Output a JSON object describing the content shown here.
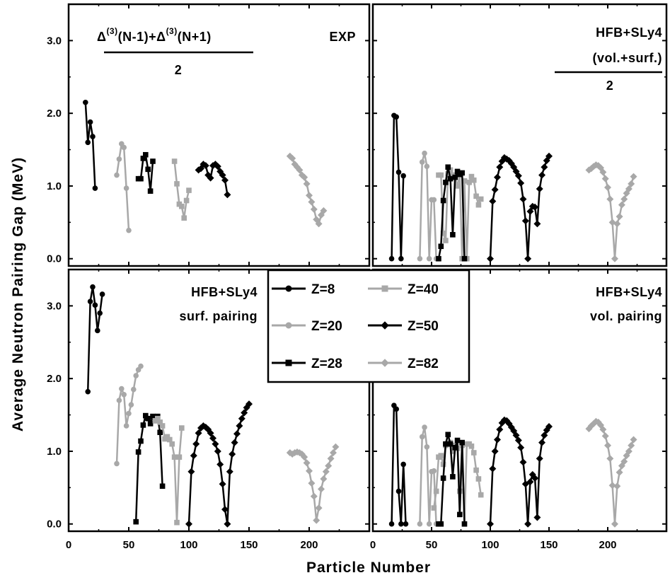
{
  "figure": {
    "y_axis_title": "Average Neutron Pairing Gap (MeV)",
    "x_axis_title": "Particle Number"
  },
  "series_styles": {
    "Z=8": {
      "color": "#000000",
      "marker": "circle"
    },
    "Z=20": {
      "color": "#a8a8a8",
      "marker": "circle"
    },
    "Z=28": {
      "color": "#000000",
      "marker": "square"
    },
    "Z=40": {
      "color": "#a8a8a8",
      "marker": "square"
    },
    "Z=50": {
      "color": "#000000",
      "marker": "diamond"
    },
    "Z=82": {
      "color": "#a8a8a8",
      "marker": "diamond"
    }
  },
  "legend": {
    "entries": [
      {
        "name": "Z=8",
        "column": 0,
        "row": 0
      },
      {
        "name": "Z=20",
        "column": 0,
        "row": 1
      },
      {
        "name": "Z=28",
        "column": 0,
        "row": 2
      },
      {
        "name": "Z=40",
        "column": 1,
        "row": 0
      },
      {
        "name": "Z=50",
        "column": 1,
        "row": 1
      },
      {
        "name": "Z=82",
        "column": 1,
        "row": 2
      }
    ]
  },
  "panel_labels": {
    "top_left": {
      "formula_left": "Δ",
      "formula_sup1": "(3)",
      "formula_mid": "(N-1)+Δ",
      "formula_sup2": "(3)",
      "formula_right": "(N+1)",
      "denominator": "2",
      "label": "EXP"
    },
    "top_right": {
      "line1": "HFB+SLy4",
      "line2": "(vol.+surf.)",
      "denominator": "2"
    },
    "bottom_left": {
      "line1": "HFB+SLy4",
      "line2": "surf. pairing"
    },
    "bottom_right": {
      "line1": "HFB+SLy4",
      "line2": "vol. pairing"
    }
  },
  "chart_data": [
    {
      "type": "line",
      "panel": "top-left",
      "xlim": [
        0,
        250
      ],
      "ylim": [
        -0.1,
        3.5
      ],
      "xticks": [
        "0",
        "50",
        "100",
        "150",
        "200"
      ],
      "yticks": [
        "0.0",
        "1.0",
        "2.0",
        "3.0"
      ],
      "show_x_tick_labels": false,
      "show_y_tick_labels": true,
      "series": [
        {
          "name": "Z=8",
          "x": [
            14,
            16,
            18,
            20,
            22
          ],
          "y": [
            2.15,
            1.6,
            1.88,
            1.68,
            0.97
          ]
        },
        {
          "name": "Z=20",
          "x": [
            40,
            42,
            44,
            46,
            48,
            50
          ],
          "y": [
            1.15,
            1.37,
            1.58,
            1.53,
            0.97,
            0.39
          ]
        },
        {
          "name": "Z=28",
          "x": [
            58,
            60,
            62,
            64,
            66,
            68,
            70
          ],
          "y": [
            1.1,
            1.1,
            1.38,
            1.43,
            1.23,
            0.93,
            1.34
          ]
        },
        {
          "name": "Z=40",
          "x": [
            88,
            90,
            92,
            94,
            96,
            98,
            100
          ],
          "y": [
            1.34,
            1.03,
            0.75,
            0.72,
            0.56,
            0.8,
            0.94
          ]
        },
        {
          "name": "Z=50",
          "x": [
            108,
            110,
            112,
            114,
            116,
            118,
            120,
            122,
            124,
            126,
            128,
            130,
            132
          ],
          "y": [
            1.22,
            1.24,
            1.3,
            1.28,
            1.15,
            1.11,
            1.28,
            1.3,
            1.27,
            1.2,
            1.15,
            1.08,
            0.88
          ]
        },
        {
          "name": "Z=82",
          "x": [
            184,
            186,
            188,
            190,
            192,
            194,
            196,
            198,
            200,
            202,
            204,
            206,
            208,
            210,
            212
          ],
          "y": [
            1.41,
            1.38,
            1.3,
            1.26,
            1.22,
            1.15,
            1.12,
            1.03,
            0.87,
            0.78,
            0.68,
            0.54,
            0.48,
            0.6,
            0.66
          ]
        }
      ]
    },
    {
      "type": "line",
      "panel": "top-right",
      "xlim": [
        0,
        250
      ],
      "ylim": [
        -0.1,
        3.5
      ],
      "xticks": [
        "0",
        "50",
        "100",
        "150",
        "200"
      ],
      "yticks": [
        "0.0",
        "1.0",
        "2.0",
        "3.0"
      ],
      "show_x_tick_labels": false,
      "show_y_tick_labels": false,
      "series": [
        {
          "name": "Z=8",
          "x": [
            16,
            18,
            20,
            22,
            24,
            26
          ],
          "y": [
            0.0,
            1.97,
            1.95,
            1.19,
            0.0,
            1.14
          ]
        },
        {
          "name": "Z=20",
          "x": [
            40,
            42,
            44,
            46,
            48,
            50,
            52,
            54
          ],
          "y": [
            0.0,
            1.33,
            1.45,
            1.27,
            0.0,
            0.81,
            0.81,
            0.0
          ]
        },
        {
          "name": "Z=40",
          "x": [
            56,
            58,
            60,
            62,
            64,
            66,
            68,
            70,
            72,
            74,
            76,
            78,
            80,
            82,
            84,
            86,
            88,
            90,
            92
          ],
          "y": [
            1.15,
            1.15,
            0.35,
            0.25,
            1.17,
            1.22,
            1.15,
            1.13,
            1.0,
            1.15,
            0.0,
            1.07,
            0.0,
            1.05,
            1.13,
            1.08,
            0.86,
            0.74,
            0.82
          ]
        },
        {
          "name": "Z=28",
          "x": [
            56,
            58,
            60,
            62,
            64,
            66,
            68,
            70,
            72,
            74,
            76,
            78
          ],
          "y": [
            0.0,
            0.17,
            0.8,
            1.05,
            1.26,
            1.1,
            0.33,
            1.12,
            1.2,
            1.16,
            1.18,
            0.0
          ]
        },
        {
          "name": "Z=50",
          "x": [
            100,
            102,
            104,
            106,
            108,
            110,
            112,
            114,
            116,
            118,
            120,
            122,
            124,
            126,
            128,
            130,
            132,
            134,
            136,
            138,
            140,
            142,
            144,
            146,
            148,
            150
          ],
          "y": [
            0.0,
            0.79,
            0.95,
            1.12,
            1.26,
            1.34,
            1.39,
            1.37,
            1.35,
            1.31,
            1.26,
            1.2,
            1.14,
            1.04,
            0.82,
            0.52,
            0.0,
            0.65,
            0.72,
            0.71,
            0.48,
            0.96,
            1.15,
            1.26,
            1.35,
            1.41
          ]
        },
        {
          "name": "Z=82",
          "x": [
            184,
            186,
            188,
            190,
            192,
            194,
            196,
            198,
            200,
            202,
            204,
            206,
            208,
            210,
            212,
            214,
            216,
            218,
            220,
            222
          ],
          "y": [
            1.22,
            1.24,
            1.27,
            1.29,
            1.28,
            1.25,
            1.19,
            1.1,
            0.98,
            0.82,
            0.5,
            0.0,
            0.48,
            0.58,
            0.74,
            0.82,
            0.9,
            0.96,
            1.03,
            1.13
          ]
        }
      ]
    },
    {
      "type": "line",
      "panel": "bottom-left",
      "xlim": [
        0,
        250
      ],
      "ylim": [
        -0.1,
        3.5
      ],
      "xticks": [
        "0",
        "50",
        "100",
        "150",
        "200"
      ],
      "yticks": [
        "0.0",
        "1.0",
        "2.0",
        "3.0"
      ],
      "show_x_tick_labels": true,
      "show_y_tick_labels": true,
      "series": [
        {
          "name": "Z=8",
          "x": [
            16,
            18,
            20,
            22,
            24,
            26,
            28
          ],
          "y": [
            1.82,
            3.06,
            3.26,
            3.01,
            2.66,
            2.9,
            3.16
          ]
        },
        {
          "name": "Z=20",
          "x": [
            40,
            42,
            44,
            46,
            48,
            50,
            52,
            54,
            56,
            58,
            60
          ],
          "y": [
            0.83,
            1.7,
            1.86,
            1.78,
            1.35,
            1.52,
            1.64,
            1.85,
            2.04,
            2.12,
            2.17
          ]
        },
        {
          "name": "Z=28",
          "x": [
            56,
            58,
            60,
            62,
            64,
            66,
            68,
            70,
            72,
            74,
            76,
            78
          ],
          "y": [
            0.03,
            0.99,
            1.14,
            1.36,
            1.49,
            1.45,
            1.38,
            1.48,
            1.42,
            1.48,
            1.26,
            0.52
          ]
        },
        {
          "name": "Z=40",
          "x": [
            72,
            74,
            76,
            78,
            80,
            82,
            84,
            86,
            88,
            90,
            92,
            94
          ],
          "y": [
            1.42,
            1.45,
            1.4,
            1.35,
            1.17,
            1.2,
            1.16,
            1.1,
            0.92,
            0.02,
            0.92,
            1.32
          ]
        },
        {
          "name": "Z=50",
          "x": [
            100,
            102,
            104,
            106,
            108,
            110,
            112,
            114,
            116,
            118,
            120,
            122,
            124,
            126,
            128,
            130,
            132,
            134,
            136,
            138,
            140,
            142,
            144,
            146,
            148,
            150
          ],
          "y": [
            0.0,
            0.72,
            0.94,
            1.1,
            1.25,
            1.32,
            1.35,
            1.33,
            1.3,
            1.25,
            1.18,
            1.1,
            1.0,
            0.82,
            0.55,
            0.2,
            0.0,
            0.72,
            0.96,
            1.12,
            1.24,
            1.35,
            1.45,
            1.53,
            1.6,
            1.65
          ]
        },
        {
          "name": "Z=82",
          "x": [
            184,
            186,
            188,
            190,
            192,
            194,
            196,
            198,
            200,
            202,
            204,
            206,
            208,
            210,
            212,
            214,
            216,
            218,
            220,
            222
          ],
          "y": [
            0.98,
            0.96,
            0.98,
            0.99,
            0.98,
            0.96,
            0.92,
            0.84,
            0.73,
            0.56,
            0.38,
            0.05,
            0.22,
            0.48,
            0.62,
            0.72,
            0.8,
            0.9,
            0.98,
            1.06
          ]
        }
      ]
    },
    {
      "type": "line",
      "panel": "bottom-right",
      "xlim": [
        0,
        250
      ],
      "ylim": [
        -0.1,
        3.5
      ],
      "xticks": [
        "0",
        "50",
        "100",
        "150",
        "200"
      ],
      "yticks": [
        "0.0",
        "1.0",
        "2.0",
        "3.0"
      ],
      "show_x_tick_labels": true,
      "show_y_tick_labels": false,
      "series": [
        {
          "name": "Z=8",
          "x": [
            16,
            18,
            20,
            22,
            24,
            26,
            28
          ],
          "y": [
            0.0,
            1.63,
            1.58,
            0.45,
            0.0,
            0.82,
            0.0
          ]
        },
        {
          "name": "Z=20",
          "x": [
            40,
            42,
            44,
            46,
            48,
            50,
            52,
            54
          ],
          "y": [
            0.0,
            1.2,
            1.33,
            1.06,
            0.0,
            0.72,
            0.73,
            0.0
          ]
        },
        {
          "name": "Z=40",
          "x": [
            52,
            54,
            56,
            58,
            60,
            62,
            64,
            66,
            68,
            70,
            72,
            74,
            76,
            78,
            80,
            82,
            84,
            86,
            88,
            90,
            92
          ],
          "y": [
            0.22,
            0.45,
            0.92,
            0.94,
            0.82,
            1.08,
            1.1,
            1.12,
            1.0,
            1.08,
            1.04,
            0.45,
            1.08,
            0.0,
            1.1,
            1.1,
            1.07,
            0.98,
            0.74,
            0.62,
            0.4
          ]
        },
        {
          "name": "Z=28",
          "x": [
            56,
            58,
            60,
            62,
            64,
            66,
            68,
            70,
            72,
            74,
            76,
            78
          ],
          "y": [
            0.0,
            0.0,
            0.63,
            1.1,
            1.23,
            1.1,
            0.65,
            1.05,
            1.15,
            0.13,
            1.12,
            0.0
          ]
        },
        {
          "name": "Z=50",
          "x": [
            100,
            102,
            104,
            106,
            108,
            110,
            112,
            114,
            116,
            118,
            120,
            122,
            124,
            126,
            128,
            130,
            132,
            134,
            136,
            138,
            140,
            142,
            144,
            146,
            148,
            150
          ],
          "y": [
            0.0,
            0.76,
            1.0,
            1.16,
            1.3,
            1.39,
            1.43,
            1.42,
            1.38,
            1.33,
            1.28,
            1.22,
            1.15,
            1.05,
            0.85,
            0.55,
            0.0,
            0.58,
            0.68,
            0.63,
            0.09,
            0.9,
            1.12,
            1.22,
            1.29,
            1.34
          ]
        },
        {
          "name": "Z=82",
          "x": [
            184,
            186,
            188,
            190,
            192,
            194,
            196,
            198,
            200,
            202,
            204,
            206,
            208,
            210,
            212,
            214,
            216,
            218,
            220,
            222
          ],
          "y": [
            1.31,
            1.35,
            1.38,
            1.41,
            1.4,
            1.36,
            1.3,
            1.21,
            1.08,
            0.9,
            0.53,
            0.0,
            0.52,
            0.71,
            0.8,
            0.86,
            0.94,
            1.0,
            1.08,
            1.16
          ]
        }
      ]
    }
  ]
}
